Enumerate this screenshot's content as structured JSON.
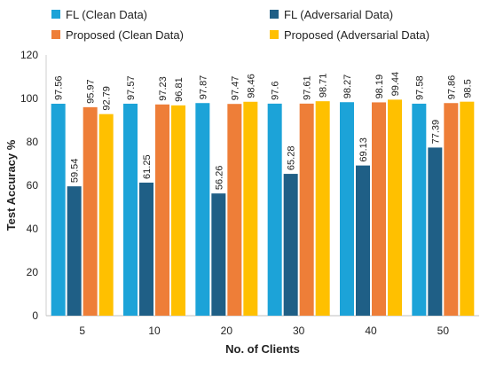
{
  "chart_data": {
    "type": "bar",
    "title": "",
    "xlabel": "No. of Clients",
    "ylabel": "Test Accuracy %",
    "categories": [
      "5",
      "10",
      "20",
      "30",
      "40",
      "50"
    ],
    "ylim": [
      0,
      120
    ],
    "yticks": [
      0,
      20,
      40,
      60,
      80,
      100,
      120
    ],
    "grid": false,
    "legend_position": "top",
    "series": [
      {
        "name": "FL (Clean Data)",
        "color": "#1ca3d8",
        "values": [
          97.56,
          97.57,
          97.87,
          97.6,
          98.27,
          97.58
        ],
        "labels": [
          "97.56",
          "97.57",
          "97.87",
          "97.6",
          "98.27",
          "97.58"
        ]
      },
      {
        "name": "FL (Adversarial Data)",
        "color": "#1f5f86",
        "values": [
          59.54,
          61.25,
          56.26,
          65.28,
          69.13,
          77.39
        ],
        "labels": [
          "59.54",
          "61.25",
          "56.26",
          "65.28",
          "69.13",
          "77.39"
        ]
      },
      {
        "name": "Proposed (Clean Data)",
        "color": "#ee7e38",
        "values": [
          95.97,
          97.23,
          97.47,
          97.61,
          98.19,
          97.86
        ],
        "labels": [
          "95.97",
          "97.23",
          "97.47",
          "97.61",
          "98.19",
          "97.86"
        ]
      },
      {
        "name": "Proposed (Adversarial Data)",
        "color": "#ffc000",
        "values": [
          92.79,
          96.81,
          98.46,
          98.71,
          99.44,
          98.5
        ],
        "labels": [
          "92.79",
          "96.81",
          "98.46",
          "98.71",
          "99.44",
          "98.5"
        ]
      }
    ]
  }
}
